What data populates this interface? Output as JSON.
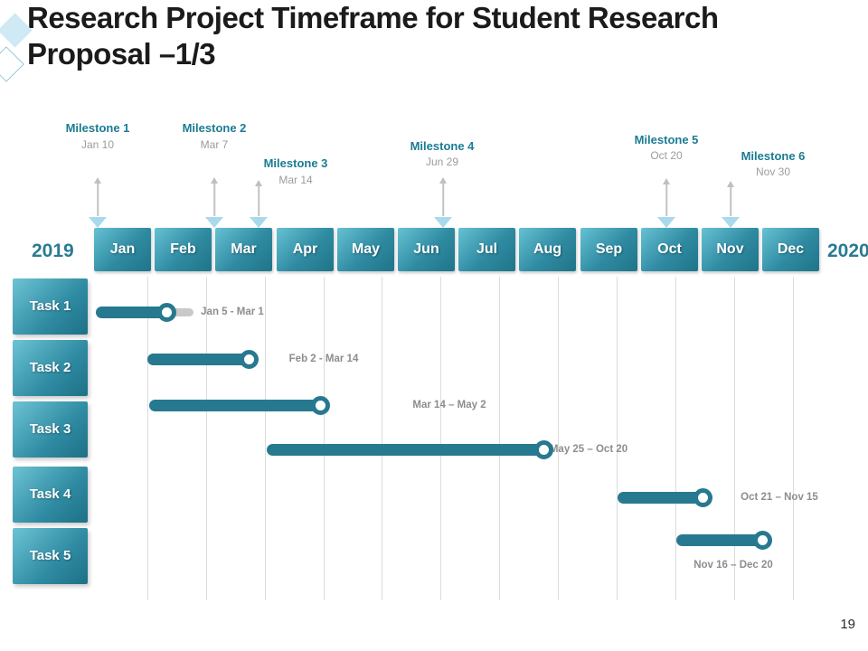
{
  "slide": {
    "title_lines": [
      "Research Project Timeframe for Student Research",
      "Proposal –1/3"
    ],
    "page_number": "19"
  },
  "timeline": {
    "year_left": "2019",
    "year_right": "2020",
    "months": [
      "Jan",
      "Feb",
      "Mar",
      "Apr",
      "May",
      "Jun",
      "Jul",
      "Aug",
      "Sep",
      "Oct",
      "Nov",
      "Dec"
    ]
  },
  "milestones": [
    {
      "name": "Milestone 1",
      "date": "Jan 10"
    },
    {
      "name": "Milestone 2",
      "date": "Mar 7"
    },
    {
      "name": "Milestone 3",
      "date": "Mar 14"
    },
    {
      "name": "Milestone 4",
      "date": "Jun 29"
    },
    {
      "name": "Milestone 5",
      "date": "Oct 20"
    },
    {
      "name": "Milestone 6",
      "date": "Nov 30"
    }
  ],
  "tasks": [
    {
      "label": "Task 1"
    },
    {
      "label": "Task 2"
    },
    {
      "label": "Task 3"
    },
    {
      "label": "Task 4"
    },
    {
      "label": "Task 5"
    }
  ],
  "bars": [
    {
      "range": "Jan 5 - Mar 1"
    },
    {
      "range": "Feb 2 - Mar 14"
    },
    {
      "range": "Mar 14 – May 2"
    },
    {
      "range": "May 25 – Oct 20"
    },
    {
      "range": "Oct 21 – Nov 15"
    },
    {
      "range": "Nov 16 – Dec 20"
    }
  ],
  "colors": {
    "bar_teal": "#27798f",
    "box_gradient_light": "#66c1d3",
    "box_gradient_dark": "#1f7488",
    "milestone_text": "#1a7c93",
    "year_text": "#2a7b92",
    "date_gray": "#9c9c9c",
    "range_gray": "#8d8d8d",
    "arrow_gray": "#bfbfbf",
    "marker_blue": "#a9d9ec",
    "grid_gray": "#dcdcdc",
    "tail_gray": "#c9c9c9"
  },
  "chart_data": {
    "type": "bar",
    "variant": "gantt-timeline",
    "title": "Research Project Timeframe for Student Research Proposal –1/3",
    "x_axis": {
      "unit": "months",
      "categories": [
        "Jan",
        "Feb",
        "Mar",
        "Apr",
        "May",
        "Jun",
        "Jul",
        "Aug",
        "Sep",
        "Oct",
        "Nov",
        "Dec"
      ],
      "start_year_label": "2019",
      "end_year_label": "2020"
    },
    "grid": true,
    "milestones": [
      {
        "name": "Milestone 1",
        "date": "Jan 10"
      },
      {
        "name": "Milestone 2",
        "date": "Mar 7"
      },
      {
        "name": "Milestone 3",
        "date": "Mar 14"
      },
      {
        "name": "Milestone 4",
        "date": "Jun 29"
      },
      {
        "name": "Milestone 5",
        "date": "Oct 20"
      },
      {
        "name": "Milestone 6",
        "date": "Nov 30"
      }
    ],
    "tasks": [
      "Task 1",
      "Task 2",
      "Task 3",
      "Task 4",
      "Task 5"
    ],
    "series": [
      {
        "start": "Jan 5",
        "end": "Mar 1",
        "label": "Jan 5 - Mar 1"
      },
      {
        "start": "Feb 2",
        "end": "Mar 14",
        "label": "Feb 2 - Mar 14"
      },
      {
        "start": "Mar 14",
        "end": "May 2",
        "label": "Mar 14 – May 2"
      },
      {
        "start": "May 25",
        "end": "Oct 20",
        "label": "May 25 – Oct 20"
      },
      {
        "start": "Oct 21",
        "end": "Nov 15",
        "label": "Oct 21 – Nov 15"
      },
      {
        "start": "Nov 16",
        "end": "Dec 20",
        "label": "Nov 16 – Dec 20"
      }
    ]
  }
}
